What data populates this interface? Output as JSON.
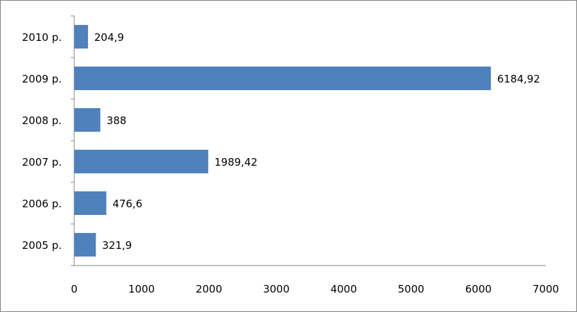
{
  "chart_data": {
    "type": "bar",
    "orientation": "horizontal",
    "categories": [
      "2005 р.",
      "2006 р.",
      "2007 р.",
      "2008 р.",
      "2009 р.",
      "2010 р."
    ],
    "values": [
      321.9,
      476.6,
      1989.42,
      388,
      6184.92,
      204.9
    ],
    "value_labels": [
      "321,9",
      "476,6",
      "1989,42",
      "388",
      "6184,92",
      "204,9"
    ],
    "title": "",
    "xlabel": "",
    "ylabel": "",
    "xlim": [
      0,
      7000
    ],
    "x_ticks": [
      "0",
      "1000",
      "2000",
      "3000",
      "4000",
      "5000",
      "6000",
      "7000"
    ],
    "grid": false,
    "legend": "none",
    "bar_color": "#4F81BD"
  }
}
